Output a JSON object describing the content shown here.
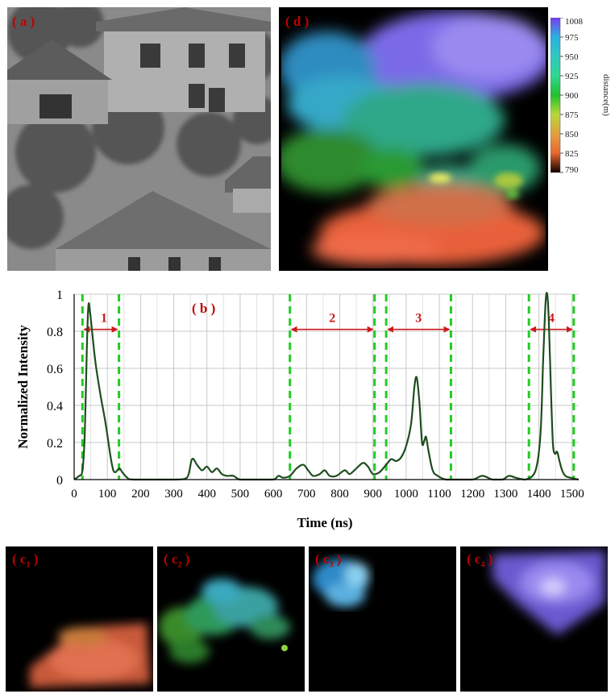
{
  "panels": {
    "a": "( a )",
    "b": "( b )",
    "d": "( d )",
    "c1": "( c1 )",
    "c2": "( c2 )",
    "c3": "( c3 )",
    "c4": "( c4 )"
  },
  "colorbar": {
    "label": "distance(m)",
    "ticks": [
      "1008",
      "975",
      "950",
      "925",
      "900",
      "875",
      "850",
      "825",
      "790"
    ],
    "colors": [
      "#7a3cf0",
      "#2ab0e0",
      "#30c8c0",
      "#30d890",
      "#22c030",
      "#b8d838",
      "#e0a040",
      "#e86830",
      "#100000"
    ]
  },
  "chart_data": {
    "type": "line",
    "xlabel": "Time (ns)",
    "ylabel": "Normalized Intensity",
    "xlim": [
      0,
      1520
    ],
    "ylim": [
      0,
      1
    ],
    "xticks": [
      0,
      100,
      200,
      300,
      400,
      500,
      600,
      700,
      800,
      900,
      1000,
      1100,
      1200,
      1300,
      1400,
      1500
    ],
    "yticks": [
      0,
      0.2,
      0.4,
      0.6,
      0.8,
      1
    ],
    "ytick_labels": [
      "0",
      "0.2",
      "0.4",
      "0.6",
      "0.8",
      "1"
    ],
    "grid": true,
    "line_color": "#1e4d1e",
    "gate_color": "#22cc22",
    "arrow_color": "#cc1a1a",
    "series": [
      {
        "x": [
          0,
          15,
          25,
          32,
          38,
          43,
          48,
          55,
          65,
          80,
          95,
          110,
          118,
          125,
          130,
          137,
          145,
          160,
          180,
          300,
          340,
          355,
          370,
          385,
          400,
          415,
          430,
          445,
          460,
          480,
          500,
          550,
          600,
          615,
          630,
          650,
          670,
          690,
          705,
          720,
          740,
          755,
          770,
          790,
          815,
          830,
          850,
          870,
          885,
          900,
          920,
          940,
          955,
          970,
          985,
          1000,
          1015,
          1025,
          1032,
          1040,
          1048,
          1055,
          1060,
          1068,
          1080,
          1095,
          1120,
          1150,
          1200,
          1230,
          1260,
          1290,
          1310,
          1330,
          1360,
          1390,
          1405,
          1413,
          1420,
          1425,
          1430,
          1436,
          1442,
          1448,
          1455,
          1462,
          1470,
          1480,
          1495,
          1520
        ],
        "y": [
          0,
          0.02,
          0.05,
          0.25,
          0.7,
          0.94,
          0.9,
          0.78,
          0.62,
          0.45,
          0.3,
          0.12,
          0.05,
          0.04,
          0.05,
          0.06,
          0.04,
          0.01,
          0,
          0,
          0.01,
          0.11,
          0.08,
          0.05,
          0.07,
          0.04,
          0.06,
          0.03,
          0.02,
          0.02,
          0,
          0,
          0,
          0.02,
          0.01,
          0.02,
          0.06,
          0.08,
          0.05,
          0.02,
          0.03,
          0.05,
          0.02,
          0.02,
          0.05,
          0.03,
          0.06,
          0.09,
          0.07,
          0.03,
          0.04,
          0.08,
          0.11,
          0.1,
          0.12,
          0.18,
          0.3,
          0.5,
          0.55,
          0.42,
          0.2,
          0.21,
          0.23,
          0.15,
          0.05,
          0.02,
          0,
          0,
          0,
          0.02,
          0,
          0,
          0.02,
          0.01,
          0,
          0.05,
          0.25,
          0.65,
          0.95,
          1.0,
          0.85,
          0.5,
          0.2,
          0.14,
          0.15,
          0.1,
          0.05,
          0.02,
          0.01,
          0
        ]
      }
    ],
    "gates": [
      [
        25,
        135
      ],
      [
        650,
        905
      ],
      [
        940,
        1135
      ],
      [
        1370,
        1505
      ]
    ],
    "gate_labels": [
      "1",
      "2",
      "3",
      "4"
    ],
    "arrow_y": 0.81
  }
}
